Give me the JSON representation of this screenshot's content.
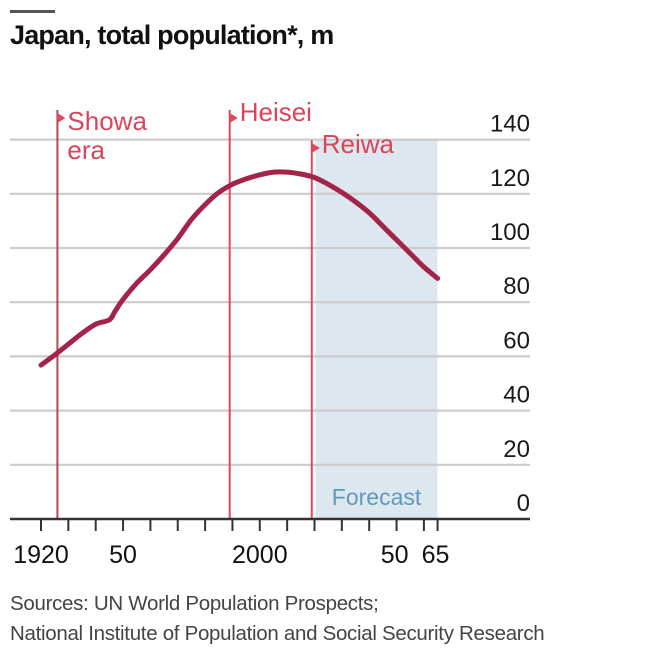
{
  "header": {
    "title": "Japan, total population*, m"
  },
  "footer": {
    "sources_line1": "Sources: UN World Population Prospects;",
    "sources_line2": "National Institute of Population and Social Security Research"
  },
  "colors": {
    "line": "#a3234a",
    "era_marker": "#e0495c",
    "era_text": "#dc4459",
    "forecast_shade": "#dde7ef",
    "forecast_text": "#5f9ab8",
    "grid": "#cccccc",
    "axis": "#333333"
  },
  "chart_data": {
    "type": "line",
    "title": "Japan, total population*, m",
    "xlabel": "",
    "ylabel": "m",
    "xlim": [
      1915,
      2065
    ],
    "ylim": [
      0,
      140
    ],
    "y_ticks": [
      0,
      20,
      40,
      60,
      80,
      100,
      120,
      140
    ],
    "x_tick_years": [
      1920,
      1930,
      1940,
      1950,
      1960,
      1970,
      1980,
      1990,
      2000,
      2010,
      2020,
      2030,
      2040,
      2050,
      2060,
      2065
    ],
    "x_tick_labels": [
      {
        "year": 1920,
        "label": "1920"
      },
      {
        "year": 1950,
        "label": "50"
      },
      {
        "year": 2000,
        "label": "2000"
      },
      {
        "year": 2050,
        "label": "50"
      },
      {
        "year": 2065,
        "label": "65"
      }
    ],
    "grid": true,
    "y_axis_position": "right",
    "series": [
      {
        "name": "Total population",
        "x": [
          1920,
          1925,
          1930,
          1935,
          1940,
          1945,
          1947,
          1950,
          1955,
          1960,
          1965,
          1970,
          1975,
          1980,
          1985,
          1990,
          1995,
          2000,
          2005,
          2010,
          2015,
          2020,
          2025,
          2030,
          2035,
          2040,
          2045,
          2050,
          2055,
          2060,
          2065
        ],
        "y": [
          56.8,
          60.5,
          64.5,
          68.5,
          71.9,
          73.5,
          76.5,
          81.0,
          87.0,
          92.0,
          97.5,
          103.5,
          110.5,
          116.0,
          120.5,
          123.5,
          125.5,
          127.0,
          128.0,
          128.0,
          127.3,
          126.0,
          123.5,
          120.5,
          117.0,
          113.0,
          108.0,
          103.0,
          98.0,
          93.0,
          88.8
        ]
      }
    ],
    "eras": [
      {
        "name": "Showa era",
        "label_lines": [
          "Showa",
          "era"
        ],
        "start_year": 1926
      },
      {
        "name": "Heisei",
        "label_lines": [
          "Heisei"
        ],
        "start_year": 1989
      },
      {
        "name": "Reiwa",
        "label_lines": [
          "Reiwa"
        ],
        "start_year": 2019
      }
    ],
    "forecast": {
      "label": "Forecast",
      "start_year": 2020,
      "end_year": 2065
    }
  }
}
